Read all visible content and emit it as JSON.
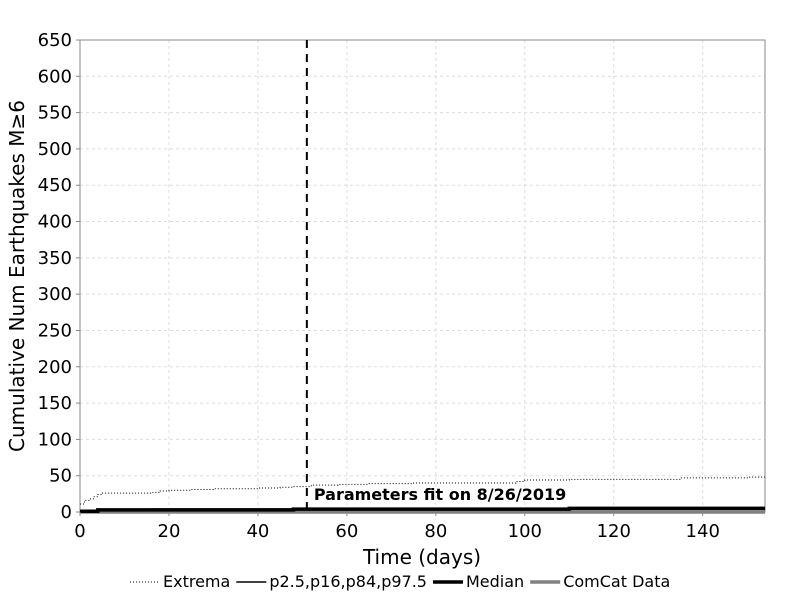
{
  "chart_data": {
    "type": "line",
    "title": "",
    "xlabel": "Time (days)",
    "ylabel": "Cumulative Num Earthquakes M≥6",
    "xlim": [
      0,
      154
    ],
    "ylim": [
      0,
      650
    ],
    "xticks": [
      0,
      20,
      40,
      60,
      80,
      100,
      120,
      140
    ],
    "yticks": [
      0,
      50,
      100,
      150,
      200,
      250,
      300,
      350,
      400,
      450,
      500,
      550,
      600,
      650
    ],
    "grid": true,
    "legend_position": "bottom",
    "vline": {
      "x": 51,
      "label": "Parameters fit on 8/26/2019"
    },
    "series": [
      {
        "name": "Extrema",
        "style": "dotted",
        "color": "#000000",
        "x": [
          0,
          1,
          2,
          3,
          4,
          5,
          8,
          16,
          18,
          20,
          25,
          30,
          40,
          45,
          48,
          52,
          58,
          65,
          75,
          98,
          100,
          110,
          120,
          135,
          145,
          150,
          154
        ],
        "y": [
          11,
          16,
          18,
          21,
          24,
          26,
          26,
          27,
          29,
          30,
          31,
          32,
          33,
          34,
          35,
          37,
          38,
          39,
          40,
          42,
          44,
          45,
          45,
          47,
          47,
          48,
          48
        ]
      },
      {
        "name": "p2.5,p16,p84,p97.5",
        "style": "solid",
        "color": "#000000",
        "x": [
          0,
          4,
          16,
          48,
          112,
          140,
          154
        ],
        "y": [
          2,
          3,
          4,
          5,
          6,
          6,
          6
        ]
      },
      {
        "name": "Median",
        "style": "solid-thick",
        "color": "#000000",
        "x": [
          0,
          4,
          48,
          110,
          154
        ],
        "y": [
          1,
          3,
          4,
          5,
          5
        ]
      },
      {
        "name": "ComCat Data",
        "style": "solid-thick",
        "color": "#808080",
        "x": [
          0,
          154
        ],
        "y": [
          0,
          0
        ]
      }
    ]
  }
}
